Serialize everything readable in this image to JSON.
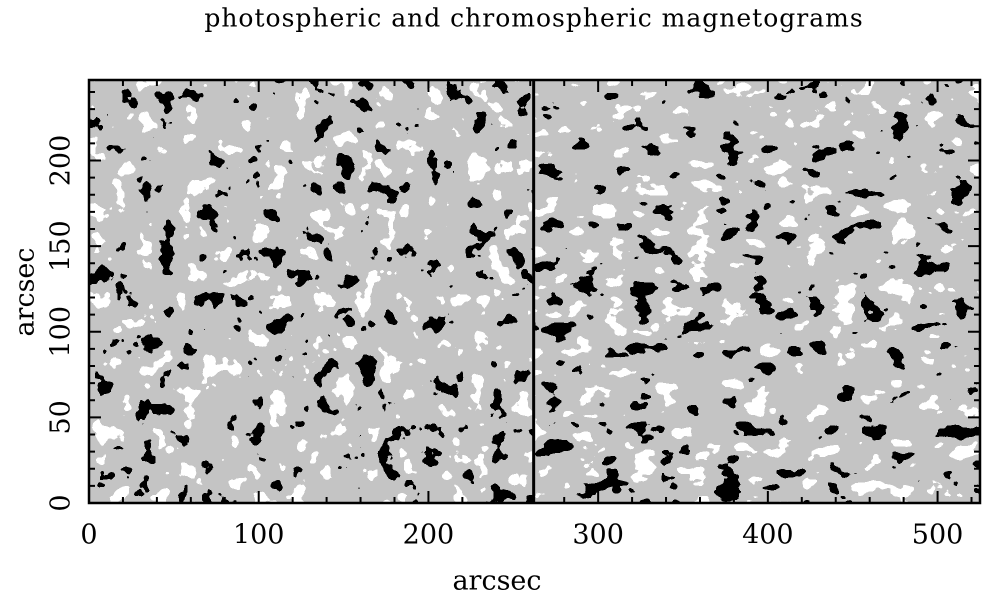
{
  "chart_data": {
    "type": "image",
    "title": "photospheric and chromospheric magnetograms",
    "xlabel": "arcsec",
    "ylabel": "arcsec",
    "xlim": [
      0,
      525
    ],
    "ylim": [
      0,
      247
    ],
    "xticks": [
      0,
      100,
      200,
      300,
      400,
      500
    ],
    "yticks": [
      0,
      50,
      100,
      150,
      200
    ],
    "xminorticks": [
      20,
      40,
      60,
      80,
      120,
      140,
      160,
      180,
      220,
      240,
      260,
      280,
      320,
      340,
      360,
      380,
      420,
      440,
      460,
      480,
      520
    ],
    "yminorticks": [
      10,
      20,
      30,
      40,
      60,
      70,
      80,
      90,
      110,
      120,
      130,
      140,
      160,
      170,
      180,
      190,
      210,
      220,
      230,
      240
    ],
    "panel_boundary": 262
  }
}
